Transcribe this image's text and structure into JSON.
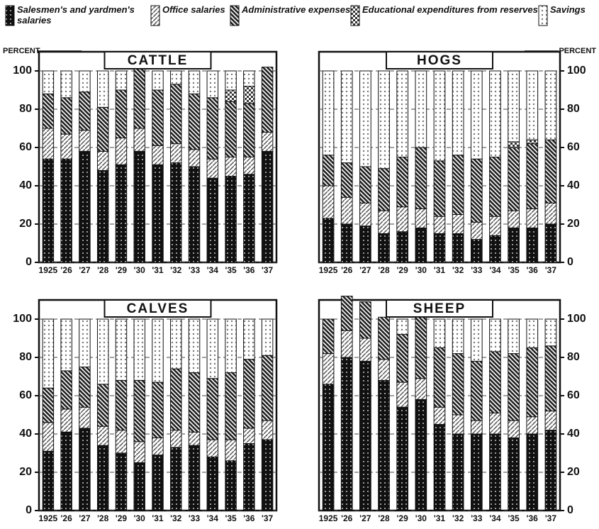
{
  "chart_data": [
    {
      "type": "bar",
      "title": "CATTLE",
      "ylabel": "PERCENT",
      "axis_side": "left",
      "categories": [
        "1925",
        "'26",
        "'27",
        "'28",
        "'29",
        "'30",
        "'31",
        "'32",
        "'33",
        "'34",
        "'35",
        "'36",
        "'37"
      ],
      "ylim": [
        0,
        110
      ],
      "yticks": [
        0,
        20,
        40,
        60,
        80,
        100
      ],
      "grid": true,
      "series": [
        {
          "name": "Salesmen's and yardmen's salaries",
          "color": "#111111",
          "values": [
            54,
            54,
            58,
            48,
            51,
            58,
            51,
            52,
            50,
            44,
            45,
            46,
            58
          ]
        },
        {
          "name": "Office salaries",
          "color": "#555555",
          "values": [
            16,
            13,
            11,
            10,
            14,
            12,
            10,
            10,
            9,
            10,
            10,
            9,
            10
          ]
        },
        {
          "name": "Administrative expenses",
          "color": "#222222",
          "values": [
            18,
            19,
            20,
            23,
            25,
            31,
            29,
            31,
            29,
            32,
            29,
            28,
            34
          ]
        },
        {
          "name": "Educational expenditures from reserves",
          "color": "#333333",
          "values": [
            0,
            0,
            0,
            0,
            0,
            0,
            0,
            0,
            0,
            0,
            6,
            9,
            0
          ]
        },
        {
          "name": "Savings",
          "color": "#777777",
          "values": [
            12,
            14,
            11,
            19,
            10,
            0,
            10,
            7,
            12,
            14,
            10,
            8,
            0
          ]
        }
      ]
    },
    {
      "type": "bar",
      "title": "HOGS",
      "ylabel": "PERCENT",
      "axis_side": "right",
      "categories": [
        "1925",
        "'26",
        "'27",
        "'28",
        "'29",
        "'30",
        "'31",
        "'32",
        "'33",
        "'34",
        "'35",
        "'36",
        "'37"
      ],
      "ylim": [
        0,
        110
      ],
      "yticks": [
        0,
        20,
        40,
        60,
        80,
        100
      ],
      "grid": true,
      "series": [
        {
          "color": "#111111",
          "values": [
            23,
            20,
            19,
            15,
            16,
            18,
            15,
            15,
            12,
            14,
            18,
            18,
            20
          ]
        },
        {
          "color": "#555555",
          "values": [
            17,
            14,
            12,
            12,
            13,
            10,
            9,
            10,
            9,
            10,
            9,
            10,
            11
          ]
        },
        {
          "color": "#222222",
          "values": [
            16,
            18,
            19,
            22,
            26,
            32,
            29,
            31,
            33,
            31,
            33,
            34,
            33
          ]
        },
        {
          "color": "#333333",
          "values": [
            0,
            0,
            0,
            0,
            0,
            0,
            0,
            0,
            0,
            0,
            3,
            2,
            0
          ]
        },
        {
          "color": "#777777",
          "values": [
            44,
            48,
            50,
            51,
            45,
            40,
            47,
            44,
            46,
            45,
            37,
            36,
            36
          ]
        }
      ]
    },
    {
      "type": "bar",
      "title": "CALVES",
      "axis_side": "left",
      "categories": [
        "1925",
        "'26",
        "'27",
        "'28",
        "'29",
        "'30",
        "'31",
        "'32",
        "'33",
        "'34",
        "'35",
        "'36",
        "'37"
      ],
      "ylim": [
        0,
        110
      ],
      "yticks": [
        0,
        20,
        40,
        60,
        80,
        100
      ],
      "grid": true,
      "series": [
        {
          "color": "#111111",
          "values": [
            31,
            41,
            43,
            34,
            30,
            25,
            29,
            33,
            34,
            28,
            26,
            35,
            37
          ]
        },
        {
          "color": "#555555",
          "values": [
            15,
            12,
            11,
            10,
            12,
            11,
            9,
            9,
            7,
            9,
            11,
            8,
            10
          ]
        },
        {
          "color": "#222222",
          "values": [
            18,
            20,
            21,
            22,
            26,
            32,
            29,
            32,
            31,
            32,
            35,
            36,
            34
          ]
        },
        {
          "color": "#333333",
          "values": [
            0,
            0,
            0,
            0,
            0,
            0,
            0,
            0,
            0,
            0,
            0,
            0,
            0
          ]
        },
        {
          "color": "#777777",
          "values": [
            36,
            27,
            25,
            34,
            32,
            32,
            33,
            26,
            28,
            31,
            28,
            21,
            19
          ]
        }
      ]
    },
    {
      "type": "bar",
      "title": "SHEEP",
      "axis_side": "right",
      "categories": [
        "1925",
        "'26",
        "'27",
        "'28",
        "'29",
        "'30",
        "'31",
        "'32",
        "'33",
        "'34",
        "'35",
        "'36",
        "'37"
      ],
      "ylim": [
        0,
        110
      ],
      "yticks": [
        0,
        20,
        40,
        60,
        80,
        100
      ],
      "grid": true,
      "series": [
        {
          "color": "#111111",
          "values": [
            66,
            80,
            78,
            68,
            54,
            58,
            45,
            40,
            40,
            40,
            38,
            40,
            42
          ]
        },
        {
          "color": "#555555",
          "values": [
            16,
            14,
            12,
            11,
            13,
            11,
            9,
            10,
            7,
            11,
            9,
            9,
            10
          ]
        },
        {
          "color": "#222222",
          "values": [
            18,
            18,
            19,
            22,
            25,
            32,
            31,
            32,
            31,
            32,
            35,
            36,
            34
          ]
        },
        {
          "color": "#333333",
          "values": [
            0,
            0,
            0,
            0,
            0,
            0,
            0,
            0,
            0,
            0,
            0,
            0,
            0
          ]
        },
        {
          "color": "#777777",
          "values": [
            0,
            0,
            0,
            0,
            8,
            0,
            15,
            18,
            22,
            17,
            18,
            15,
            14
          ]
        }
      ]
    }
  ]
}
